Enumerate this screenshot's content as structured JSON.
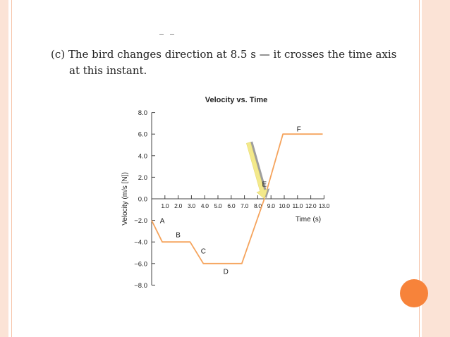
{
  "caption": {
    "line1": "(c) The bird changes direction at 8.5 s — it crosses the time axis",
    "line2": "at this instant."
  },
  "colors": {
    "frame": "#fbe3d6",
    "accent_dot": "#f7833a",
    "series": "#f5a35c",
    "arrow": "#f3e98b",
    "arrow_shadow": "#9e9e9e"
  },
  "chart_data": {
    "type": "line",
    "title": "Velocity vs. Time",
    "xlabel": "Time (s)",
    "ylabel": "Velocity (m/s [N])",
    "xlim": [
      0,
      13
    ],
    "ylim": [
      -8,
      8
    ],
    "x_ticks": [
      "1.0",
      "2.0",
      "3.0",
      "4.0",
      "5.0",
      "6.0",
      "7.0",
      "8.0",
      "9.0",
      "10.0",
      "11.0",
      "12.0",
      "13.0"
    ],
    "y_ticks": [
      "8.0",
      "6.0",
      "4.0",
      "2.0",
      "0.0",
      "−2.0",
      "−4.0",
      "−6.0",
      "−8.0"
    ],
    "grid": false,
    "series": [
      {
        "points": [
          [
            0,
            -2
          ],
          [
            0.8,
            -4
          ],
          [
            2.9,
            -4
          ],
          [
            3.9,
            -6
          ],
          [
            6.8,
            -6
          ],
          [
            8.5,
            0
          ],
          [
            9.9,
            6
          ],
          [
            12.9,
            6
          ]
        ]
      }
    ],
    "point_labels": [
      {
        "text": "A",
        "x": 0.8,
        "y": -2.0
      },
      {
        "text": "B",
        "x": 2.0,
        "y": -3.3
      },
      {
        "text": "C",
        "x": 3.9,
        "y": -4.8
      },
      {
        "text": "D",
        "x": 5.6,
        "y": -6.7
      },
      {
        "text": "E",
        "x": 8.5,
        "y": 1.4
      },
      {
        "text": "F",
        "x": 11.1,
        "y": 6.5
      }
    ],
    "annotation": {
      "type": "arrow",
      "from": [
        7.3,
        5.2
      ],
      "to": [
        8.5,
        0
      ]
    }
  }
}
